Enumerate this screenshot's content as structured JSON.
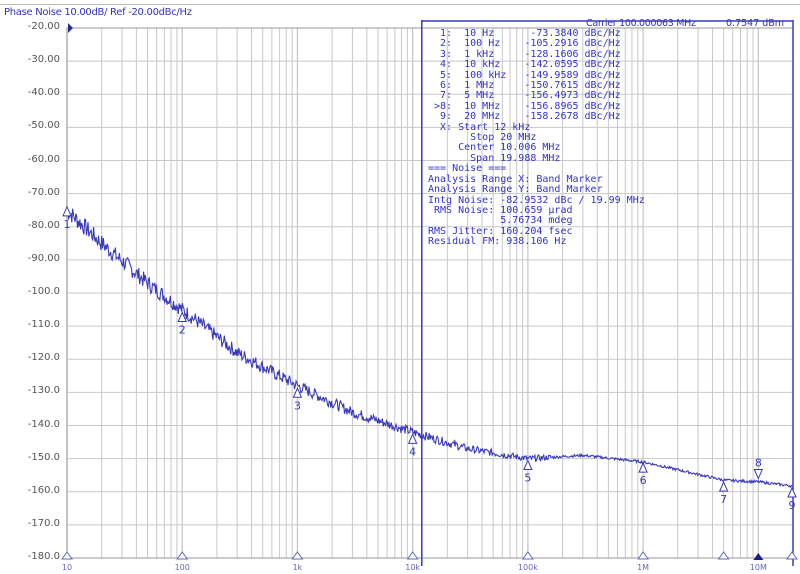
{
  "header": {
    "title": "Phase Noise 10.00dB/ Ref -20.00dBc/Hz",
    "carrier": "Carrier 100.000063 MHz",
    "power": "0.7547 dBm"
  },
  "markers_table": [
    "  1:  10 Hz      -73.3840 dBc/Hz",
    "  2:  100 Hz    -105.2916 dBc/Hz",
    "  3:  1 kHz     -128.1606 dBc/Hz",
    "  4:  10 kHz    -142.0595 dBc/Hz",
    "  5:  100 kHz   -149.9589 dBc/Hz",
    "  6:  1 MHz     -150.7615 dBc/Hz",
    "  7:  5 MHz     -156.4973 dBc/Hz",
    " >8:  10 MHz    -156.8965 dBc/Hz",
    "  9:  20 MHz    -158.2678 dBc/Hz",
    "  X: Start 12 kHz",
    "       Stop 20 MHz",
    "     Center 10.006 MHz",
    "       Span 19.988 MHz",
    "=== Noise ===",
    "Analysis Range X: Band Marker",
    "Analysis Range Y: Band Marker",
    "Intg Noise: -82.9532 dBc / 19.99 MHz",
    " RMS Noise: 100.659 µrad",
    "            5.76734 mdeg",
    "RMS Jitter: 160.204 fsec",
    "Residual FM: 938.106 Hz"
  ],
  "colors": {
    "trace": "#3a3ab8",
    "grid": "#c8c8c8",
    "text": "#3333cc"
  },
  "chart_data": {
    "type": "line",
    "title": "Phase Noise 10.00dB/ Ref -20.00dBc/Hz",
    "x_scale": "log",
    "xlim": [
      10,
      20000000
    ],
    "ylim": [
      -180,
      -20
    ],
    "grid": true,
    "y_ticks": [
      "-20.00",
      "-30.00",
      "-40.00",
      "-50.00",
      "-60.00",
      "-70.00",
      "-80.00",
      "-90.00",
      "-100.0",
      "-110.0",
      "-120.0",
      "-130.0",
      "-140.0",
      "-150.0",
      "-160.0",
      "-170.0",
      "-180.0"
    ],
    "x_ticks": [
      "10",
      "100",
      "1k",
      "10k",
      "100k",
      "1M",
      "10M"
    ],
    "band_marker": {
      "start_hz": 12000,
      "stop_hz": 20000000
    },
    "trace": {
      "x": [
        10,
        20,
        50,
        100,
        300,
        1000,
        3000,
        10000,
        30000,
        100000,
        300000,
        1000000,
        5000000,
        10000000,
        20000000
      ],
      "y": [
        -75,
        -85,
        -97,
        -105,
        -118,
        -128,
        -136,
        -142,
        -147,
        -150,
        -149,
        -151,
        -156.5,
        -157,
        -158.3
      ]
    },
    "markers": [
      {
        "id": "1",
        "x": 10,
        "y": -73.384
      },
      {
        "id": "2",
        "x": 100,
        "y": -105.2916
      },
      {
        "id": "3",
        "x": 1000,
        "y": -128.1606
      },
      {
        "id": "4",
        "x": 10000,
        "y": -142.0595
      },
      {
        "id": "5",
        "x": 100000,
        "y": -149.9589
      },
      {
        "id": "6",
        "x": 1000000,
        "y": -150.7615
      },
      {
        "id": "7",
        "x": 5000000,
        "y": -156.4973
      },
      {
        "id": "8",
        "x": 10000000,
        "y": -156.8965,
        "active": true
      },
      {
        "id": "9",
        "x": 20000000,
        "y": -158.2678
      }
    ]
  }
}
